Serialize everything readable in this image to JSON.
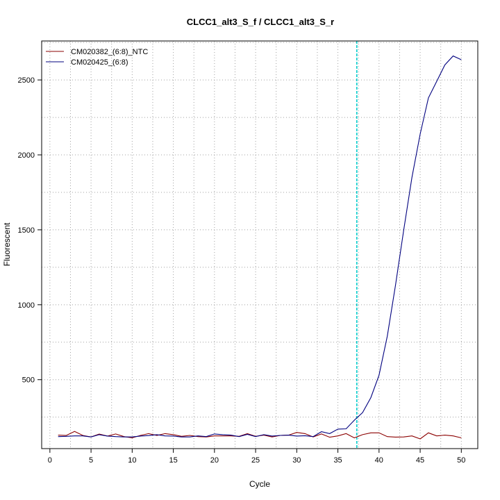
{
  "chart_data": {
    "type": "line",
    "title": "CLCC1_alt3_S_f / CLCC1_alt3_S_r",
    "xlabel": "Cycle",
    "ylabel": "Fluorescent",
    "xlim": [
      -1,
      52
    ],
    "ylim": [
      40,
      2760
    ],
    "x_ticks": [
      0,
      5,
      10,
      15,
      20,
      25,
      30,
      35,
      40,
      45,
      50
    ],
    "y_ticks": [
      500,
      1000,
      1500,
      2000,
      2500
    ],
    "grid": true,
    "legend_position": "top-left",
    "threshold_cycle": 37.3,
    "threshold_color": "#00cccc",
    "x": [
      1,
      2,
      3,
      4,
      5,
      6,
      7,
      8,
      9,
      10,
      11,
      12,
      13,
      14,
      15,
      16,
      17,
      18,
      19,
      20,
      21,
      22,
      23,
      24,
      25,
      26,
      27,
      28,
      29,
      30,
      31,
      32,
      33,
      34,
      35,
      36,
      37,
      38,
      39,
      40,
      41,
      42,
      43,
      44,
      45,
      46,
      47,
      48,
      49,
      50
    ],
    "series": [
      {
        "name": "CM020382_(6:8)_NTC",
        "color": "#8b0000",
        "values": [
          130,
          128,
          155,
          128,
          118,
          137,
          124,
          138,
          120,
          112,
          128,
          140,
          128,
          140,
          133,
          122,
          128,
          120,
          118,
          125,
          125,
          125,
          122,
          140,
          122,
          130,
          118,
          128,
          130,
          148,
          140,
          118,
          138,
          116,
          125,
          140,
          112,
          133,
          145,
          145,
          120,
          117,
          118,
          125,
          105,
          145,
          125,
          130,
          125,
          112
        ]
      },
      {
        "name": "CM020425_(6:8)",
        "color": "#00007f",
        "values": [
          120,
          122,
          125,
          125,
          118,
          133,
          124,
          120,
          118,
          118,
          124,
          127,
          133,
          125,
          124,
          118,
          118,
          125,
          120,
          138,
          133,
          130,
          120,
          135,
          120,
          133,
          124,
          128,
          130,
          124,
          126,
          120,
          153,
          140,
          170,
          172,
          230,
          280,
          380,
          530,
          790,
          1130,
          1500,
          1850,
          2140,
          2380,
          2490,
          2600,
          2660,
          2635
        ]
      }
    ]
  }
}
